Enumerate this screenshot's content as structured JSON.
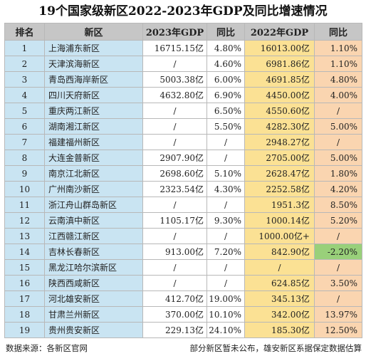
{
  "title": "19个国家级新区2022-2023年GDP及同比增速情况",
  "headers": [
    "排名",
    "新区",
    "2023年GDP",
    "同比",
    "2022年GDP",
    "同比"
  ],
  "rows": [
    {
      "rank": "1",
      "name": "上海浦东新区",
      "gdp2023": "16715.15亿",
      "yoy2023": "4.80%",
      "gdp2022": "16013.00亿",
      "yoy2022": "1.10%"
    },
    {
      "rank": "2",
      "name": "天津滨海新区",
      "gdp2023": "/",
      "yoy2023": "4.60%",
      "gdp2022": "6981.86亿",
      "yoy2022": "1.10%"
    },
    {
      "rank": "3",
      "name": "青岛西海岸新区",
      "gdp2023": "5003.38亿",
      "yoy2023": "6.00%",
      "gdp2022": "4691.85亿",
      "yoy2022": "4.80%"
    },
    {
      "rank": "4",
      "name": "四川天府新区",
      "gdp2023": "4632.80亿",
      "yoy2023": "6.90%",
      "gdp2022": "4450.00亿",
      "yoy2022": "4.00%"
    },
    {
      "rank": "5",
      "name": "重庆两江新区",
      "gdp2023": "/",
      "yoy2023": "6.50%",
      "gdp2022": "4550.60亿",
      "yoy2022": "/"
    },
    {
      "rank": "6",
      "name": "湖南湘江新区",
      "gdp2023": "/",
      "yoy2023": "5.50%",
      "gdp2022": "4282.30亿",
      "yoy2022": "5.00%"
    },
    {
      "rank": "7",
      "name": "福建福州新区",
      "gdp2023": "/",
      "yoy2023": "/",
      "gdp2022": "2948.27亿",
      "yoy2022": "/"
    },
    {
      "rank": "8",
      "name": "大连金普新区",
      "gdp2023": "2907.90亿",
      "yoy2023": "/",
      "gdp2022": "2705.00亿",
      "yoy2022": "5.00%"
    },
    {
      "rank": "9",
      "name": "南京江北新区",
      "gdp2023": "2698.60亿",
      "yoy2023": "5.10%",
      "gdp2022": "2628.47亿",
      "yoy2022": "1.80%"
    },
    {
      "rank": "10",
      "name": "广州南沙新区",
      "gdp2023": "2323.54亿",
      "yoy2023": "4.30%",
      "gdp2022": "2252.58亿",
      "yoy2022": "4.20%"
    },
    {
      "rank": "11",
      "name": "浙江舟山群岛新区",
      "gdp2023": "/",
      "yoy2023": "/",
      "gdp2022": "1951.3亿",
      "yoy2022": "8.50%"
    },
    {
      "rank": "12",
      "name": "云南滇中新区",
      "gdp2023": "1105.17亿",
      "yoy2023": "9.30%",
      "gdp2022": "1000.14亿",
      "yoy2022": "5.20%"
    },
    {
      "rank": "13",
      "name": "江西赣江新区",
      "gdp2023": "/",
      "yoy2023": "/",
      "gdp2022": "1000.00亿+",
      "yoy2022": "/"
    },
    {
      "rank": "14",
      "name": "吉林长春新区",
      "gdp2023": "913.00亿",
      "yoy2023": "7.20%",
      "gdp2022": "842.90亿",
      "yoy2022": "-2.20%"
    },
    {
      "rank": "15",
      "name": "黑龙江哈尔滨新区",
      "gdp2023": "/",
      "yoy2023": "/",
      "gdp2022": "/",
      "yoy2022": "/"
    },
    {
      "rank": "16",
      "name": "陕西西咸新区",
      "gdp2023": "/",
      "yoy2023": "/",
      "gdp2022": "624.85亿",
      "yoy2022": "3.50%"
    },
    {
      "rank": "17",
      "name": "河北雄安新区",
      "gdp2023": "412.70亿",
      "yoy2023": "19.00%",
      "gdp2022": "345.13亿",
      "yoy2022": "/"
    },
    {
      "rank": "18",
      "name": "甘肃兰州新区",
      "gdp2023": "370.00亿",
      "yoy2023": "10.10%",
      "gdp2022": "342.00亿",
      "yoy2022": "13.97%"
    },
    {
      "rank": "19",
      "name": "贵州贵安新区",
      "gdp2023": "229.13亿",
      "yoy2023": "24.10%",
      "gdp2022": "185.30亿",
      "yoy2022": "12.50%"
    }
  ],
  "footer": {
    "source": "数据来源：各新区官网",
    "note": "部分新区暂未公布，雄安新区系据保定数据估算"
  },
  "colors": {
    "header": "#c6c6c6",
    "rank_name": "#c9e4f2",
    "gdp2022": "#fbe194",
    "yoy2022": "#fad5b0",
    "negative": "#99d07a"
  }
}
